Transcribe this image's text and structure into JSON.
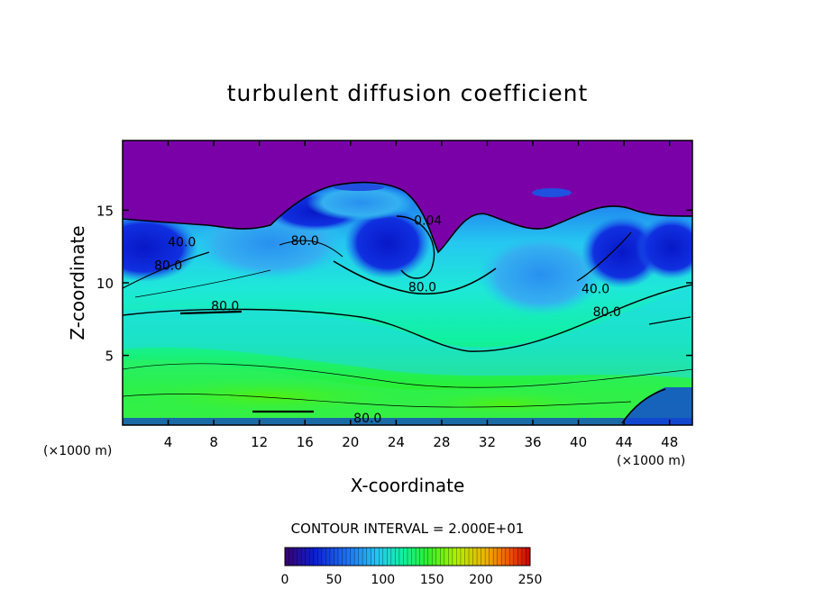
{
  "chart_data": {
    "type": "heatmap",
    "title": "turbulent diffusion coefficient",
    "xlabel": "X-coordinate",
    "ylabel": "Z-coordinate",
    "x_unit": "(×1000 m)",
    "z_unit": "(×1000 m)",
    "xlim": [
      0,
      50
    ],
    "ylim": [
      0.2,
      19.8
    ],
    "xticks": [
      4,
      8,
      12,
      16,
      20,
      24,
      28,
      32,
      36,
      40,
      44,
      48
    ],
    "yticks": [
      5,
      10,
      15
    ],
    "contour_interval_text": "CONTOUR INTERVAL = 2.000E+01",
    "contour_labels": [
      {
        "text": "80.0",
        "x": 4.0,
        "z": 10.9
      },
      {
        "text": "40.0",
        "x": 5.2,
        "z": 12.5
      },
      {
        "text": "80.0",
        "x": 9.0,
        "z": 8.1
      },
      {
        "text": "80.0",
        "x": 16.0,
        "z": 12.6
      },
      {
        "text": "0.04",
        "x": 26.8,
        "z": 14.0
      },
      {
        "text": "80.0",
        "x": 26.3,
        "z": 9.4
      },
      {
        "text": "40.0",
        "x": 41.5,
        "z": 9.3
      },
      {
        "text": "80.0",
        "x": 42.5,
        "z": 7.7
      },
      {
        "text": "80.0",
        "x": 21.5,
        "z": 0.4
      }
    ],
    "colorbar": {
      "min": 0,
      "max": 250,
      "ticks": [
        0,
        50,
        100,
        150,
        200,
        250
      ],
      "colormap": [
        "#3a0070",
        "#0a1fd0",
        "#1f6ff0",
        "#25c8f0",
        "#10f0a0",
        "#2cf02c",
        "#b0f000",
        "#f0b000",
        "#f05000",
        "#c80000"
      ]
    },
    "regions": {
      "top_band_value": 0,
      "mid_layer_value": 110,
      "near_ground_value": 150,
      "lobes": [
        {
          "x": 2.0,
          "z": 12.0,
          "value": 20
        },
        {
          "x": 11.0,
          "z": 12.8,
          "value": 75
        },
        {
          "x": 25.0,
          "z": 13.0,
          "value": 15
        },
        {
          "x": 37.0,
          "z": 11.2,
          "value": 95
        },
        {
          "x": 43.5,
          "z": 12.0,
          "value": 15
        },
        {
          "x": 14.5,
          "z": 16.2,
          "value": 40
        },
        {
          "x": 21.5,
          "z": 15.5,
          "value": 60
        }
      ]
    }
  }
}
